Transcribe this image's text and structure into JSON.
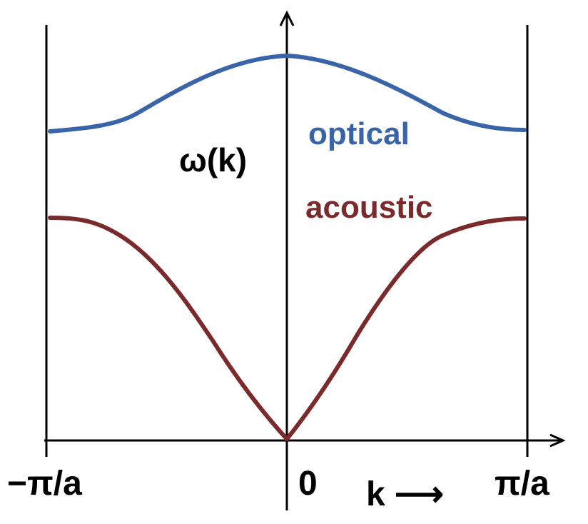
{
  "diagram": {
    "y_axis_label": "ω(k)",
    "x_axis_label": "k ⟶",
    "ticks": {
      "left": "−π/a",
      "center": "0",
      "right": "π/a"
    }
  },
  "chart_data": {
    "type": "line",
    "xlabel": "k",
    "ylabel": "ω(k)",
    "xlim": [
      "−π/a",
      "π/a"
    ],
    "series": [
      {
        "name": "optical",
        "color": "#3a64a8",
        "description_shape": "maximum at k=0, minimum at zone boundary"
      },
      {
        "name": "acoustic",
        "color": "#7a2a2a",
        "description_shape": "zero at k=0, maximum at zone boundary"
      }
    ]
  }
}
